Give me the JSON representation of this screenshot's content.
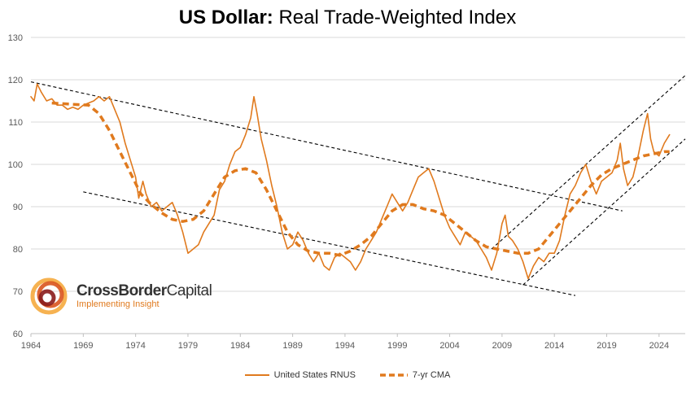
{
  "title": {
    "bold": "US Dollar:",
    "rest": " Real Trade-Weighted Index"
  },
  "logo": {
    "brand_part1": "CrossBorder",
    "brand_part2": "Capital",
    "tagline": "Implementing Insight"
  },
  "colors": {
    "series": "#e07a1e",
    "grid": "#d9d9d9",
    "axis_text": "#595959",
    "trend": "#000000"
  },
  "chart_data": {
    "type": "line",
    "title": "US Dollar: Real Trade-Weighted Index",
    "xlim": [
      1964,
      2026.5
    ],
    "ylim": [
      60,
      130
    ],
    "x_ticks": [
      1964,
      1969,
      1974,
      1979,
      1984,
      1989,
      1994,
      1999,
      2004,
      2009,
      2014,
      2019,
      2024
    ],
    "y_ticks": [
      60,
      70,
      80,
      90,
      100,
      110,
      120,
      130
    ],
    "grid": "horizontal",
    "legend_position": "bottom",
    "series": [
      {
        "name": "United States RNUS",
        "style": "solid",
        "points": [
          [
            1964.0,
            116
          ],
          [
            1964.3,
            115
          ],
          [
            1964.6,
            119
          ],
          [
            1965.0,
            117
          ],
          [
            1965.5,
            115
          ],
          [
            1966.0,
            115.5
          ],
          [
            1966.5,
            114
          ],
          [
            1967.0,
            114
          ],
          [
            1967.5,
            113
          ],
          [
            1968.0,
            113.5
          ],
          [
            1968.5,
            113
          ],
          [
            1969.0,
            114
          ],
          [
            1969.5,
            114.5
          ],
          [
            1970.0,
            115
          ],
          [
            1970.5,
            116
          ],
          [
            1971.0,
            115
          ],
          [
            1971.5,
            116
          ],
          [
            1972.0,
            113
          ],
          [
            1972.5,
            110
          ],
          [
            1973.0,
            105
          ],
          [
            1973.5,
            101
          ],
          [
            1974.0,
            97
          ],
          [
            1974.3,
            92
          ],
          [
            1974.7,
            96
          ],
          [
            1975.0,
            93
          ],
          [
            1975.5,
            90
          ],
          [
            1976.0,
            91
          ],
          [
            1976.5,
            89
          ],
          [
            1977.0,
            90
          ],
          [
            1977.5,
            91
          ],
          [
            1978.0,
            88
          ],
          [
            1978.5,
            84
          ],
          [
            1979.0,
            79
          ],
          [
            1979.5,
            80
          ],
          [
            1980.0,
            81
          ],
          [
            1980.5,
            84
          ],
          [
            1981.0,
            86
          ],
          [
            1981.5,
            88
          ],
          [
            1982.0,
            94
          ],
          [
            1982.5,
            96
          ],
          [
            1983.0,
            100
          ],
          [
            1983.5,
            103
          ],
          [
            1984.0,
            104
          ],
          [
            1984.5,
            107
          ],
          [
            1985.0,
            111
          ],
          [
            1985.3,
            116
          ],
          [
            1985.6,
            112
          ],
          [
            1986.0,
            106
          ],
          [
            1986.5,
            101
          ],
          [
            1987.0,
            95
          ],
          [
            1987.5,
            90
          ],
          [
            1988.0,
            84
          ],
          [
            1988.5,
            80
          ],
          [
            1989.0,
            81
          ],
          [
            1989.5,
            84
          ],
          [
            1990.0,
            82
          ],
          [
            1990.5,
            79
          ],
          [
            1991.0,
            77
          ],
          [
            1991.5,
            79
          ],
          [
            1992.0,
            76
          ],
          [
            1992.5,
            75
          ],
          [
            1993.0,
            78
          ],
          [
            1993.5,
            79
          ],
          [
            1994.0,
            78
          ],
          [
            1994.5,
            77
          ],
          [
            1995.0,
            75
          ],
          [
            1995.5,
            77
          ],
          [
            1996.0,
            80
          ],
          [
            1996.5,
            82
          ],
          [
            1997.0,
            84
          ],
          [
            1997.5,
            87
          ],
          [
            1998.0,
            90
          ],
          [
            1998.5,
            93
          ],
          [
            1999.0,
            91
          ],
          [
            1999.5,
            89
          ],
          [
            2000.0,
            91
          ],
          [
            2000.5,
            94
          ],
          [
            2001.0,
            97
          ],
          [
            2001.5,
            98
          ],
          [
            2002.0,
            99
          ],
          [
            2002.5,
            96
          ],
          [
            2003.0,
            92
          ],
          [
            2003.5,
            88
          ],
          [
            2004.0,
            85
          ],
          [
            2004.5,
            83
          ],
          [
            2005.0,
            81
          ],
          [
            2005.5,
            84
          ],
          [
            2006.0,
            83
          ],
          [
            2006.5,
            82
          ],
          [
            2007.0,
            80
          ],
          [
            2007.5,
            78
          ],
          [
            2008.0,
            75
          ],
          [
            2008.5,
            79
          ],
          [
            2009.0,
            86
          ],
          [
            2009.3,
            88
          ],
          [
            2009.6,
            83
          ],
          [
            2010.0,
            82
          ],
          [
            2010.5,
            80
          ],
          [
            2011.0,
            77
          ],
          [
            2011.5,
            73
          ],
          [
            2012.0,
            76
          ],
          [
            2012.5,
            78
          ],
          [
            2013.0,
            77
          ],
          [
            2013.5,
            79
          ],
          [
            2014.0,
            79
          ],
          [
            2014.5,
            82
          ],
          [
            2015.0,
            88
          ],
          [
            2015.5,
            93
          ],
          [
            2016.0,
            95
          ],
          [
            2016.5,
            98
          ],
          [
            2017.0,
            100
          ],
          [
            2017.5,
            96
          ],
          [
            2018.0,
            93
          ],
          [
            2018.5,
            96
          ],
          [
            2019.0,
            97
          ],
          [
            2019.5,
            98
          ],
          [
            2020.0,
            101
          ],
          [
            2020.3,
            105
          ],
          [
            2020.6,
            99
          ],
          [
            2021.0,
            95
          ],
          [
            2021.5,
            97
          ],
          [
            2022.0,
            102
          ],
          [
            2022.5,
            108
          ],
          [
            2022.9,
            112
          ],
          [
            2023.2,
            106
          ],
          [
            2023.5,
            103
          ],
          [
            2024.0,
            102
          ],
          [
            2024.5,
            105
          ],
          [
            2025.0,
            107
          ]
        ]
      },
      {
        "name": "7-yr CMA",
        "style": "dashed",
        "points": [
          [
            1966.0,
            114.5
          ],
          [
            1968.0,
            114.2
          ],
          [
            1969.5,
            114
          ],
          [
            1970.5,
            112
          ],
          [
            1971.5,
            108
          ],
          [
            1972.5,
            103
          ],
          [
            1973.5,
            98
          ],
          [
            1974.5,
            93
          ],
          [
            1975.5,
            90.5
          ],
          [
            1976.5,
            88.5
          ],
          [
            1977.5,
            87
          ],
          [
            1978.5,
            86.5
          ],
          [
            1979.5,
            87
          ],
          [
            1980.5,
            89
          ],
          [
            1981.5,
            93
          ],
          [
            1982.5,
            97
          ],
          [
            1983.5,
            98.5
          ],
          [
            1984.5,
            99
          ],
          [
            1985.5,
            98
          ],
          [
            1986.5,
            94
          ],
          [
            1987.5,
            89
          ],
          [
            1988.5,
            84
          ],
          [
            1989.5,
            81
          ],
          [
            1990.5,
            79.5
          ],
          [
            1991.5,
            79
          ],
          [
            1992.5,
            79
          ],
          [
            1993.5,
            78.5
          ],
          [
            1994.5,
            79.5
          ],
          [
            1995.5,
            81
          ],
          [
            1996.5,
            83
          ],
          [
            1997.5,
            86
          ],
          [
            1998.5,
            89
          ],
          [
            1999.5,
            90.5
          ],
          [
            2000.5,
            90.5
          ],
          [
            2001.5,
            89.5
          ],
          [
            2002.5,
            89
          ],
          [
            2003.5,
            88
          ],
          [
            2004.5,
            86
          ],
          [
            2005.5,
            84
          ],
          [
            2006.5,
            82
          ],
          [
            2007.5,
            80.5
          ],
          [
            2008.5,
            80
          ],
          [
            2009.5,
            79.5
          ],
          [
            2010.5,
            79
          ],
          [
            2011.5,
            79
          ],
          [
            2012.5,
            80
          ],
          [
            2013.5,
            83
          ],
          [
            2014.5,
            86
          ],
          [
            2015.5,
            89
          ],
          [
            2016.5,
            92
          ],
          [
            2017.5,
            95
          ],
          [
            2018.5,
            97.5
          ],
          [
            2019.5,
            99
          ],
          [
            2020.5,
            100
          ],
          [
            2021.5,
            101
          ],
          [
            2022.5,
            102
          ],
          [
            2023.5,
            102.5
          ],
          [
            2024.5,
            103
          ],
          [
            2025.0,
            103
          ]
        ]
      }
    ],
    "trendlines": [
      {
        "from": [
          1964,
          119.5
        ],
        "to": [
          2020.5,
          89
        ]
      },
      {
        "from": [
          1969,
          93.5
        ],
        "to": [
          2016,
          69
        ]
      },
      {
        "from": [
          2008,
          80
        ],
        "to": [
          2026.5,
          121
        ]
      },
      {
        "from": [
          2011,
          71.5
        ],
        "to": [
          2026.5,
          106
        ]
      }
    ]
  }
}
